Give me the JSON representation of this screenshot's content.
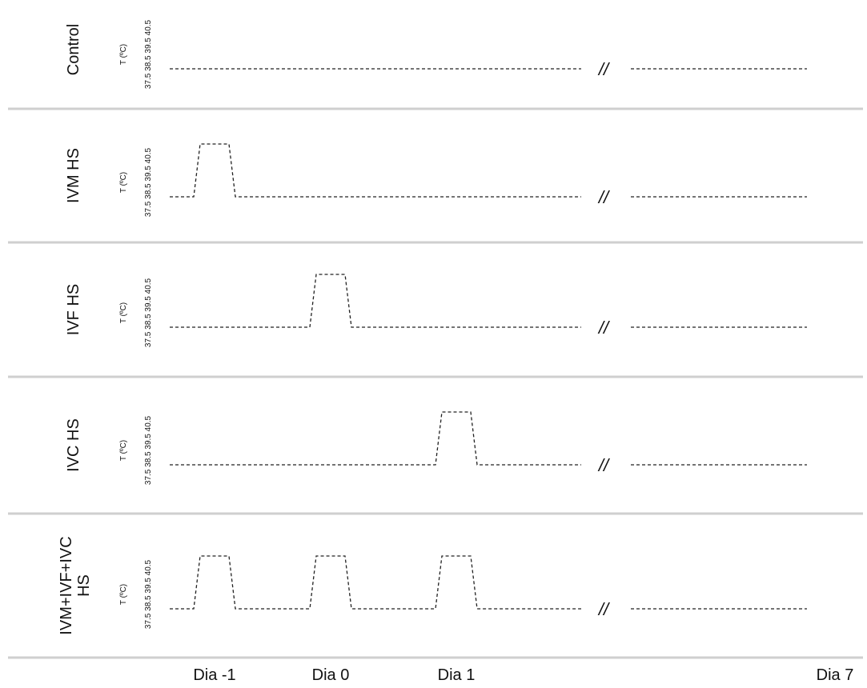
{
  "panels": [
    {
      "label": "Control",
      "heat_days": []
    },
    {
      "label": "IVM HS",
      "heat_days": [
        "Dia -1"
      ]
    },
    {
      "label": "IVF HS",
      "heat_days": [
        "Dia 0"
      ]
    },
    {
      "label": "IVC HS",
      "heat_days": [
        "Dia 1"
      ]
    },
    {
      "label": "IVM+IVF+IVC HS",
      "heat_days": [
        "Dia -1",
        "Dia 0",
        "Dia 1"
      ]
    }
  ],
  "axis": {
    "label": "T (ºC)",
    "ticks": [
      "37.5",
      "38.5",
      "39.5",
      "40.5"
    ],
    "baseline_temp": "38.5",
    "heat_temp": "40.5"
  },
  "break_symbol": "//",
  "x_labels": [
    "Dia -1",
    "Dia 0",
    "Dia 1",
    "Dia 7"
  ],
  "colors": {
    "trace": "#222222",
    "separator": "#cfcfcf",
    "text": "#111111"
  }
}
